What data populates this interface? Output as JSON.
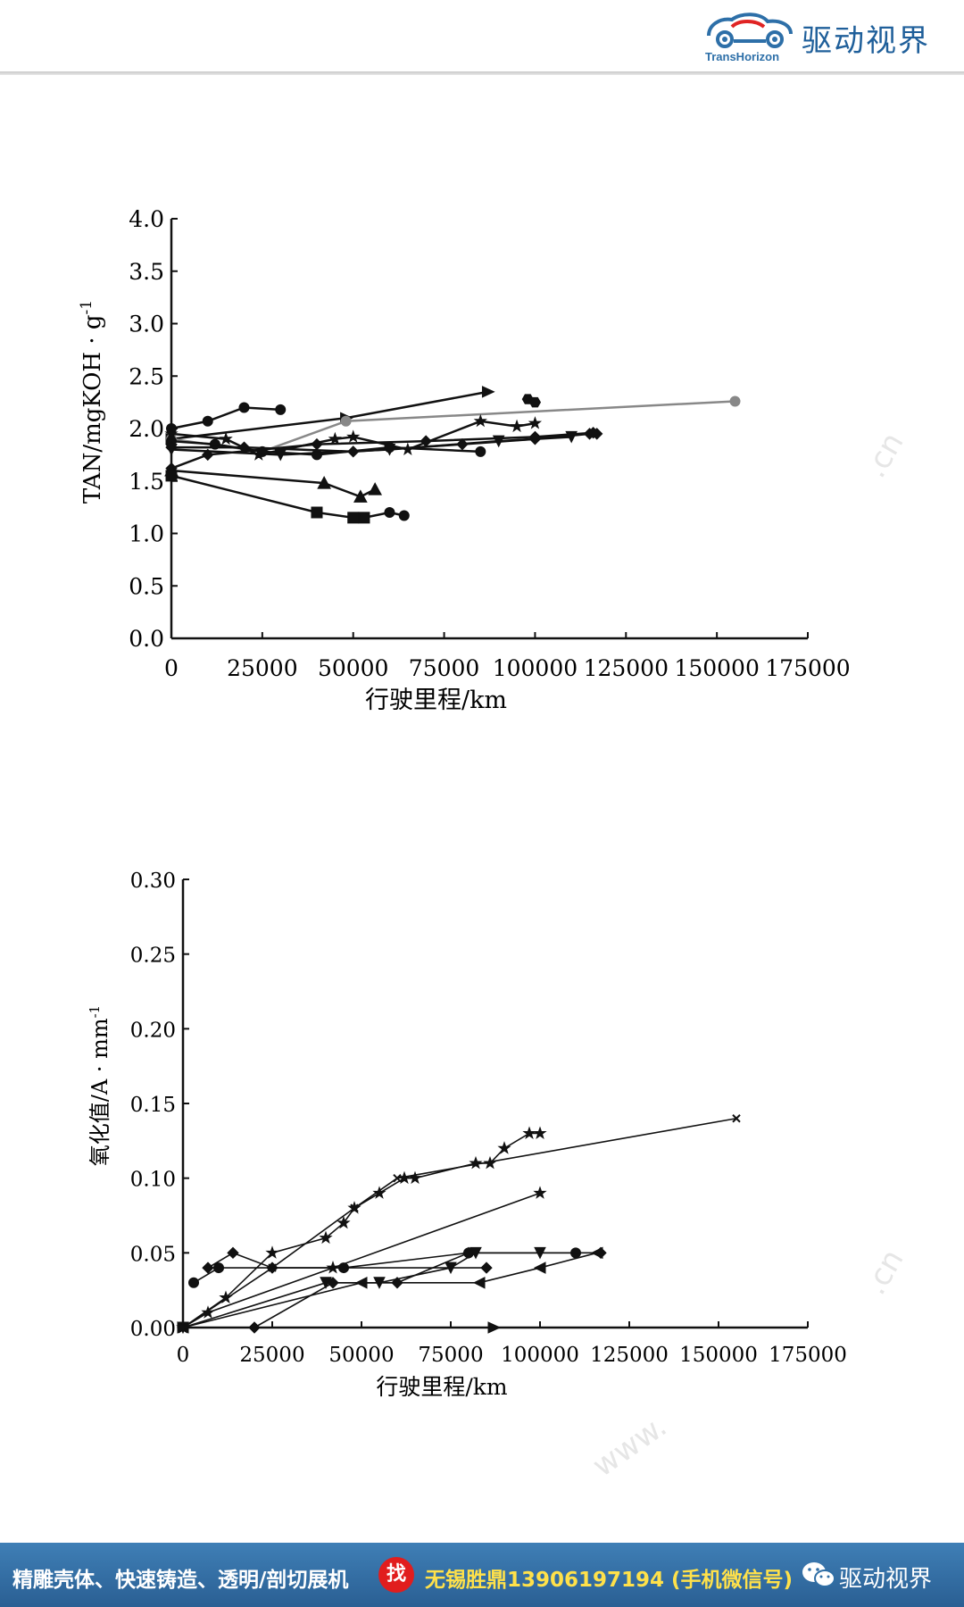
{
  "header": {
    "brand_text": "驱动视界",
    "logo_text": "TransHorizon",
    "logo_icon": "car-cloud-logo-icon",
    "accent": "#1f5f9a"
  },
  "footer": {
    "promo_text": "精雕壳体、快速铸造、透明/剖切展机",
    "find_label": "找",
    "contact_text": "无锡胜鼎13906197194 (手机微信号)",
    "brand_text": "驱动视界",
    "bg_color": "#2f6ea5",
    "highlight_color": "#ffe14a"
  },
  "watermarks": [
    ".cn",
    ".cn",
    "www."
  ],
  "chart_data": [
    {
      "type": "line",
      "title": "",
      "xlabel": "行驶里程/km",
      "ylabel": "TAN/mgKOH · g",
      "ylabel_exponent": "-1",
      "xlim": [
        0,
        175000
      ],
      "ylim": [
        0,
        4.0
      ],
      "xticks": [
        0,
        25000,
        50000,
        75000,
        100000,
        125000,
        150000,
        175000
      ],
      "xtick_labels": [
        "0",
        "25000",
        "50000",
        "75000",
        "100000",
        "125000",
        "150000",
        "175000"
      ],
      "yticks": [
        0,
        0.5,
        1.0,
        1.5,
        2.0,
        2.5,
        3.0,
        3.5,
        4.0
      ],
      "ytick_labels": [
        "0.0",
        "0.5",
        "1.0",
        "1.5",
        "2.0",
        "2.5",
        "3.0",
        "3.5",
        "4.0"
      ],
      "grid": false,
      "series": [
        {
          "marker": "circle",
          "points": [
            [
              0,
              2.0
            ],
            [
              10000,
              2.07
            ],
            [
              20000,
              2.2
            ],
            [
              30000,
              2.18
            ]
          ]
        },
        {
          "marker": "triangle-right",
          "points": [
            [
              0,
              1.9
            ],
            [
              48000,
              2.1
            ],
            [
              87000,
              2.35
            ]
          ]
        },
        {
          "marker": "circle",
          "color": "#888888",
          "points": [
            [
              0,
              1.9
            ],
            [
              25000,
              1.78
            ],
            [
              48000,
              2.07
            ],
            [
              155000,
              2.26
            ]
          ]
        },
        {
          "marker": "hexagon",
          "points": [
            [
              98000,
              2.28
            ],
            [
              100000,
              2.25
            ]
          ]
        },
        {
          "marker": "star",
          "points": [
            [
              0,
              1.95
            ],
            [
              15000,
              1.9
            ],
            [
              24000,
              1.75
            ],
            [
              45000,
              1.9
            ],
            [
              50000,
              1.92
            ],
            [
              65000,
              1.8
            ],
            [
              85000,
              2.07
            ],
            [
              95000,
              2.02
            ],
            [
              100000,
              2.05
            ]
          ]
        },
        {
          "marker": "circle",
          "points": [
            [
              0,
              1.88
            ],
            [
              12000,
              1.85
            ],
            [
              25000,
              1.78
            ],
            [
              40000,
              1.75
            ],
            [
              60000,
              1.82
            ],
            [
              85000,
              1.78
            ]
          ]
        },
        {
          "marker": "diamond",
          "points": [
            [
              0,
              1.82
            ],
            [
              20000,
              1.82
            ],
            [
              50000,
              1.78
            ],
            [
              80000,
              1.85
            ],
            [
              100000,
              1.9
            ],
            [
              115000,
              1.95
            ],
            [
              117000,
              1.95
            ]
          ]
        },
        {
          "marker": "triangle-down",
          "points": [
            [
              0,
              1.8
            ],
            [
              30000,
              1.75
            ],
            [
              60000,
              1.8
            ],
            [
              90000,
              1.88
            ],
            [
              110000,
              1.92
            ]
          ]
        },
        {
          "marker": "diamond",
          "points": [
            [
              0,
              1.62
            ],
            [
              10000,
              1.75
            ],
            [
              40000,
              1.85
            ],
            [
              70000,
              1.88
            ],
            [
              100000,
              1.92
            ],
            [
              116000,
              1.96
            ]
          ]
        },
        {
          "marker": "triangle",
          "points": [
            [
              0,
              1.6
            ],
            [
              42000,
              1.48
            ],
            [
              52000,
              1.35
            ],
            [
              56000,
              1.42
            ]
          ]
        },
        {
          "marker": "square",
          "points": [
            [
              0,
              1.55
            ],
            [
              40000,
              1.2
            ],
            [
              50000,
              1.15
            ],
            [
              53000,
              1.15
            ]
          ]
        },
        {
          "marker": "circle",
          "points": [
            [
              53000,
              1.15
            ],
            [
              60000,
              1.2
            ],
            [
              64000,
              1.17
            ]
          ]
        }
      ]
    },
    {
      "type": "line",
      "title": "",
      "xlabel": "行驶里程/km",
      "ylabel": "氧化值/A · mm",
      "ylabel_exponent": "-1",
      "xlim": [
        0,
        175000
      ],
      "ylim": [
        0,
        0.3
      ],
      "xticks": [
        0,
        25000,
        50000,
        75000,
        100000,
        125000,
        150000,
        175000
      ],
      "xtick_labels": [
        "0",
        "25000",
        "50000",
        "75000",
        "100000",
        "125000",
        "150000",
        "175000"
      ],
      "yticks": [
        0,
        0.05,
        0.1,
        0.15,
        0.2,
        0.25,
        0.3
      ],
      "ytick_labels": [
        "0.00",
        "0.05",
        "0.10",
        "0.15",
        "0.20",
        "0.25",
        "0.30"
      ],
      "grid": false,
      "series": [
        {
          "marker": "star",
          "points": [
            [
              0,
              0.0
            ],
            [
              12000,
              0.02
            ],
            [
              25000,
              0.05
            ],
            [
              40000,
              0.06
            ],
            [
              45000,
              0.07
            ],
            [
              48000,
              0.08
            ],
            [
              55000,
              0.09
            ],
            [
              62000,
              0.1
            ],
            [
              65000,
              0.1
            ],
            [
              82000,
              0.11
            ],
            [
              86000,
              0.11
            ],
            [
              90000,
              0.12
            ],
            [
              97000,
              0.13
            ],
            [
              100000,
              0.13
            ]
          ]
        },
        {
          "marker": "x",
          "points": [
            [
              0,
              0.0
            ],
            [
              25000,
              0.04
            ],
            [
              48000,
              0.08
            ],
            [
              60000,
              0.1
            ],
            [
              155000,
              0.14
            ]
          ]
        },
        {
          "marker": "star",
          "points": [
            [
              0,
              0.0
            ],
            [
              7000,
              0.01
            ],
            [
              42000,
              0.04
            ],
            [
              100000,
              0.09
            ]
          ]
        },
        {
          "marker": "diamond",
          "points": [
            [
              7000,
              0.04
            ],
            [
              14000,
              0.05
            ],
            [
              25000,
              0.04
            ],
            [
              85000,
              0.04
            ]
          ]
        },
        {
          "marker": "circle",
          "points": [
            [
              3000,
              0.03
            ],
            [
              10000,
              0.04
            ],
            [
              45000,
              0.04
            ],
            [
              80000,
              0.05
            ],
            [
              110000,
              0.05
            ]
          ]
        },
        {
          "marker": "triangle-down",
          "points": [
            [
              0,
              0.0
            ],
            [
              40000,
              0.03
            ],
            [
              55000,
              0.03
            ],
            [
              75000,
              0.04
            ],
            [
              82000,
              0.05
            ],
            [
              100000,
              0.05
            ]
          ]
        },
        {
          "marker": "triangle-left",
          "points": [
            [
              0,
              0.0
            ],
            [
              50000,
              0.03
            ],
            [
              83000,
              0.03
            ],
            [
              100000,
              0.04
            ],
            [
              116000,
              0.05
            ]
          ]
        },
        {
          "marker": "diamond",
          "points": [
            [
              20000,
              0.0
            ],
            [
              42000,
              0.03
            ],
            [
              60000,
              0.03
            ],
            [
              80000,
              0.05
            ],
            [
              117000,
              0.05
            ]
          ]
        },
        {
          "marker": "triangle-right",
          "points": [
            [
              0,
              0.0
            ],
            [
              87000,
              0.0
            ]
          ]
        }
      ]
    }
  ]
}
